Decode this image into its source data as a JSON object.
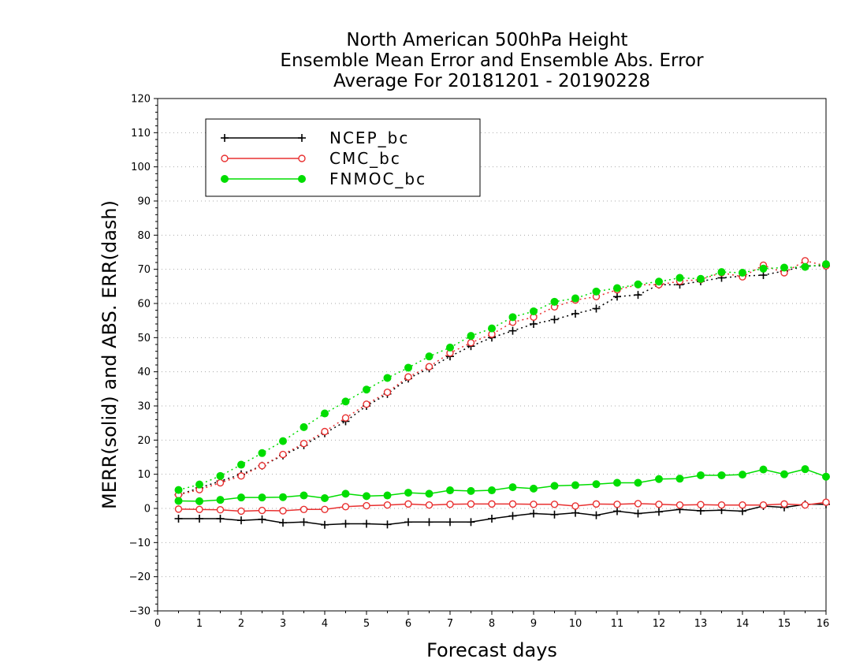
{
  "chart_data": {
    "type": "line",
    "title_lines": [
      "North American 500hPa Height",
      "Ensemble Mean Error and Ensemble Abs. Error",
      "Average For 20181201 - 20190228"
    ],
    "xlabel": "Forecast days",
    "ylabel": "MERR(solid) and ABS. ERR(dash)",
    "xlim": [
      0,
      16
    ],
    "ylim": [
      -30,
      120
    ],
    "xticks": [
      "0",
      "1",
      "2",
      "3",
      "4",
      "5",
      "6",
      "7",
      "8",
      "9",
      "10",
      "11",
      "12",
      "13",
      "14",
      "15",
      "16"
    ],
    "yticks": [
      "−30",
      "−20",
      "−10",
      "0",
      "10",
      "20",
      "30",
      "40",
      "50",
      "60",
      "70",
      "80",
      "90",
      "100",
      "110",
      "120"
    ],
    "grid": "horizontal dotted",
    "legend_position": "top-left",
    "x": [
      0.5,
      1,
      1.5,
      2,
      2.5,
      3,
      3.5,
      4,
      4.5,
      5,
      5.5,
      6,
      6.5,
      7,
      7.5,
      8,
      8.5,
      9,
      9.5,
      10,
      10.5,
      11,
      11.5,
      12,
      12.5,
      13,
      13.5,
      14,
      14.5,
      15,
      15.5,
      16
    ],
    "series": [
      {
        "name": "NCEP_bc",
        "color": "#000000",
        "marker": "plus",
        "merr": [
          -3,
          -3,
          -3,
          -3.5,
          -3.2,
          -4.2,
          -4,
          -4.8,
          -4.5,
          -4.5,
          -4.7,
          -4,
          -4,
          -4,
          -4,
          -3,
          -2.2,
          -1.5,
          -1.8,
          -1.3,
          -2,
          -0.8,
          -1.5,
          -1,
          -0.3,
          -0.7,
          -0.5,
          -0.8,
          0.7,
          0.3,
          1.2,
          1.2
        ],
        "abs_err": [
          4,
          6,
          8,
          10,
          12.5,
          15.5,
          18.5,
          22,
          25.5,
          30,
          33.5,
          38,
          41,
          44.5,
          47.5,
          50,
          52,
          54,
          55.3,
          57,
          58.5,
          62,
          62.5,
          65.5,
          65.5,
          66.5,
          67.5,
          68,
          68.3,
          69.5,
          71,
          71
        ]
      },
      {
        "name": "CMC_bc",
        "color": "#e83030",
        "marker": "open-circle",
        "merr": [
          -0.2,
          -0.3,
          -0.4,
          -0.8,
          -0.6,
          -0.7,
          -0.3,
          -0.3,
          0.5,
          0.8,
          1,
          1.3,
          1,
          1.2,
          1.3,
          1.3,
          1.3,
          1.2,
          1.2,
          0.7,
          1.3,
          1.2,
          1.4,
          1.2,
          1,
          1.1,
          1,
          1,
          1,
          1.3,
          1,
          1.8
        ],
        "abs_err": [
          4,
          5.5,
          7.5,
          9.5,
          12.5,
          15.8,
          19,
          22.5,
          26.5,
          30.5,
          34,
          38.5,
          41.5,
          45.5,
          48.5,
          51,
          54.5,
          56,
          59,
          61,
          62,
          64,
          65.5,
          65.5,
          66.5,
          67,
          69,
          67.8,
          71.2,
          69,
          72.5,
          71
        ]
      },
      {
        "name": "FNMOC_bc",
        "color": "#00dd00",
        "marker": "filled-circle",
        "merr": [
          2.2,
          2.1,
          2.5,
          3.2,
          3.2,
          3.3,
          3.8,
          3,
          4.3,
          3.6,
          3.8,
          4.6,
          4.3,
          5.3,
          5.1,
          5.3,
          6.2,
          5.8,
          6.6,
          6.8,
          7.1,
          7.5,
          7.5,
          8.6,
          8.7,
          9.7,
          9.7,
          9.9,
          11.4,
          10,
          11.5,
          9.3
        ],
        "abs_err": [
          5.4,
          7,
          9.5,
          12.8,
          16.2,
          19.7,
          23.8,
          27.8,
          31.3,
          34.8,
          38.2,
          41.2,
          44.5,
          47.1,
          50.5,
          52.7,
          56,
          57.7,
          60.5,
          61.5,
          63.5,
          64.5,
          65.6,
          66.4,
          67.5,
          67.2,
          69.2,
          69,
          70.2,
          70.5,
          70.7,
          71.5
        ]
      }
    ]
  }
}
